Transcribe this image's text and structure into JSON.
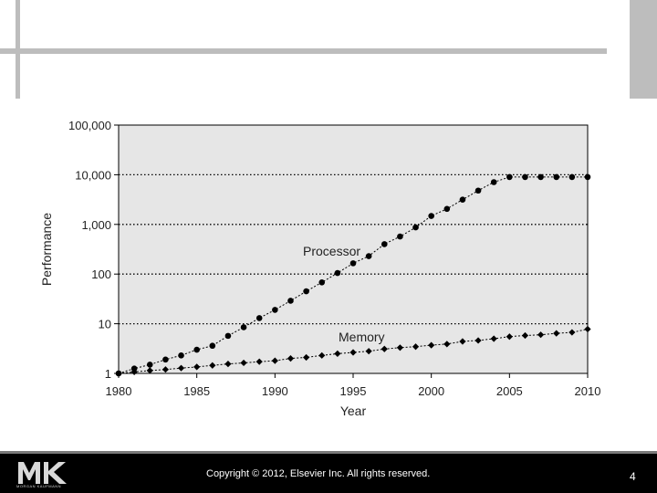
{
  "footer": {
    "copyright": "Copyright © 2012, Elsevier Inc. All rights reserved.",
    "page_number": "4",
    "logo": "MK",
    "logo_subtext": "MORGAN KAUFMANN"
  },
  "chart_data": {
    "type": "line",
    "xlabel": "Year",
    "ylabel": "Performance",
    "y_scale": "log",
    "xlim": [
      1980,
      2010
    ],
    "ylim": [
      1,
      100000
    ],
    "x_ticks": [
      "1980",
      "1985",
      "1990",
      "1995",
      "2000",
      "2005",
      "2010"
    ],
    "y_ticks": [
      "1",
      "10",
      "100",
      "1,000",
      "10,000",
      "100,000"
    ],
    "grid": "horizontal dotted",
    "background": "#e6e6e6",
    "series": [
      {
        "name": "Processor",
        "marker": "circle",
        "x": [
          1980,
          1981,
          1982,
          1983,
          1984,
          1985,
          1986,
          1987,
          1988,
          1989,
          1990,
          1991,
          1992,
          1993,
          1994,
          1995,
          1996,
          1997,
          1998,
          1999,
          2000,
          2001,
          2002,
          2003,
          2004,
          2005,
          2006,
          2007,
          2008,
          2009,
          2010
        ],
        "y": [
          1,
          1.25,
          1.5,
          1.9,
          2.3,
          3,
          3.6,
          5.7,
          8.5,
          13,
          19,
          29,
          45,
          68,
          105,
          165,
          230,
          400,
          570,
          870,
          1480,
          2050,
          3150,
          4800,
          7100,
          9000,
          9000,
          9000,
          9000,
          9000,
          9000
        ]
      },
      {
        "name": "Memory",
        "marker": "diamond",
        "x": [
          1980,
          1981,
          1982,
          1983,
          1984,
          1985,
          1986,
          1987,
          1988,
          1989,
          1990,
          1991,
          1992,
          1993,
          1994,
          1995,
          1996,
          1997,
          1998,
          1999,
          2000,
          2001,
          2002,
          2003,
          2004,
          2005,
          2006,
          2007,
          2008,
          2009,
          2010
        ],
        "y": [
          1,
          1.07,
          1.14,
          1.2,
          1.28,
          1.35,
          1.45,
          1.55,
          1.63,
          1.72,
          1.8,
          2.0,
          2.1,
          2.3,
          2.5,
          2.65,
          2.8,
          3.1,
          3.3,
          3.45,
          3.7,
          3.9,
          4.4,
          4.6,
          5.0,
          5.5,
          5.8,
          6.0,
          6.4,
          6.7,
          7.8
        ]
      }
    ]
  }
}
